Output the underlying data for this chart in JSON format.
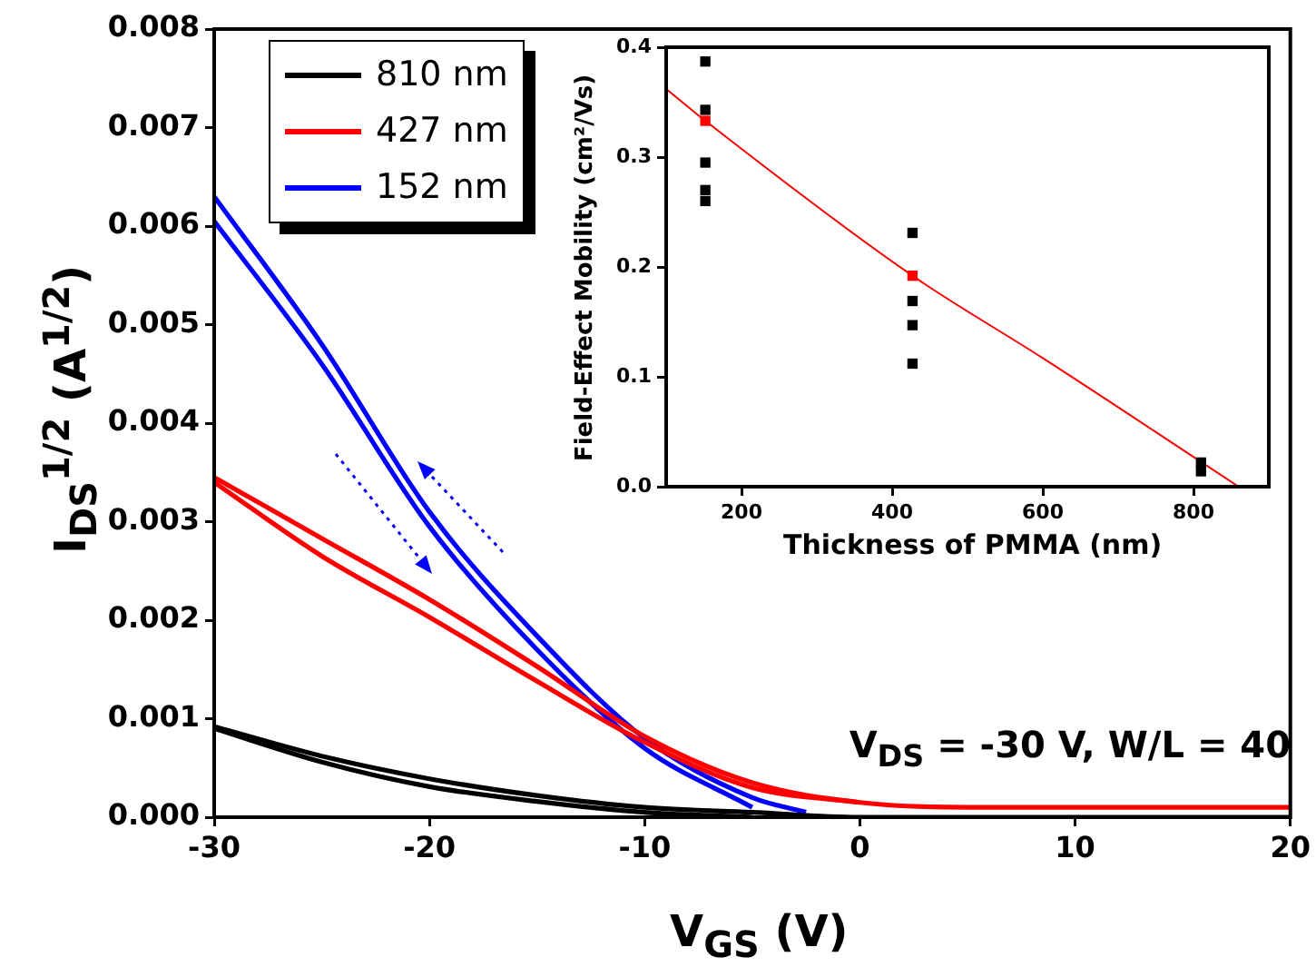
{
  "chart_data": [
    {
      "type": "line",
      "xlabel": "V$_{GS}$ (V)",
      "ylabel": "I$_{DS}$$^{1/2}$ (A$^{1/2}$)",
      "xlim": [
        -30,
        20
      ],
      "xticks": [
        -30,
        -20,
        -10,
        0,
        10,
        20
      ],
      "ylim": [
        0,
        0.008
      ],
      "yticks": [
        {
          "value": 0,
          "label": "0.000"
        },
        {
          "value": 0.001,
          "label": "0.001"
        },
        {
          "value": 0.002,
          "label": "0.002"
        },
        {
          "value": 0.003,
          "label": "0.003"
        },
        {
          "value": 0.004,
          "label": "0.004"
        },
        {
          "value": 0.005,
          "label": "0.005"
        },
        {
          "value": 0.006,
          "label": "0.006"
        },
        {
          "value": 0.007,
          "label": "0.007"
        },
        {
          "value": 0.008,
          "label": "0.008"
        }
      ],
      "grid": false,
      "legend": "top left",
      "annotations": [
        "V$_{DS}$ = -30 V, W/L = 40"
      ],
      "x": [
        -30,
        -25,
        -20,
        -15,
        -10,
        -5,
        0,
        5,
        10,
        15,
        20
      ],
      "series": [
        {
          "name": "810 nm",
          "color": "#000000",
          "values": [
            0.00092,
            0.00062,
            0.00039,
            0.00022,
            0.0001,
            5e-05,
            0,
            0,
            0,
            0,
            0
          ]
        },
        {
          "color": "#000000",
          "x": [
            -30,
            -25,
            -20,
            -15,
            -10,
            -5
          ],
          "values": [
            0.0009,
            0.00056,
            0.00031,
            0.00016,
            5e-05,
            0
          ]
        },
        {
          "name": "427 nm",
          "color": "#ff0000",
          "values": [
            0.00345,
            0.00283,
            0.00221,
            0.00153,
            0.00082,
            0.00035,
            0.00015,
            0.0001,
            0.0001,
            0.0001,
            0.0001
          ]
        },
        {
          "color": "#ff0000",
          "x": [
            -30,
            -25,
            -20,
            -15,
            -10,
            -5,
            0
          ],
          "values": [
            0.0034,
            0.00265,
            0.00203,
            0.00138,
            0.00076,
            0.0003,
            0.00015
          ]
        },
        {
          "name": "152 nm",
          "color": "#0000ff",
          "x": [
            -30,
            -25,
            -20,
            -15,
            -10,
            -5,
            -2.5
          ],
          "values": [
            0.0063,
            0.0048,
            0.0031,
            0.00184,
            0.0008,
            0.0002,
            5e-05
          ]
        },
        {
          "color": "#0000ff",
          "x": [
            -30,
            -25,
            -20,
            -15,
            -10,
            -5
          ],
          "values": [
            0.00605,
            0.0046,
            0.00295,
            0.0017,
            0.0007,
            0.0001
          ]
        }
      ]
    },
    {
      "type": "scatter",
      "xlabel": "Thickness of PMMA (nm)",
      "ylabel": "Field-Effect Mobility (cm²/Vs)",
      "xlim": [
        100,
        900
      ],
      "xticks": [
        200,
        400,
        600,
        800
      ],
      "ylim": [
        0,
        0.4
      ],
      "yticks": [
        {
          "value": 0,
          "label": "0.0"
        },
        {
          "value": 0.1,
          "label": "0.1"
        },
        {
          "value": 0.2,
          "label": "0.2"
        },
        {
          "value": 0.3,
          "label": "0.3"
        },
        {
          "value": 0.4,
          "label": "0.4"
        }
      ],
      "grid": false,
      "marker": "square",
      "series": [
        {
          "color": "#000000",
          "x": [
            152,
            152,
            152,
            152,
            152,
            427,
            427,
            427,
            427,
            810,
            810
          ],
          "values": [
            0.387,
            0.343,
            0.295,
            0.27,
            0.26,
            0.231,
            0.169,
            0.147,
            0.112,
            0.022,
            0.014
          ]
        },
        {
          "color": "#ff0000",
          "x": [
            152,
            427
          ],
          "values": [
            0.333,
            0.192
          ]
        },
        {
          "type": "line",
          "marker": "none",
          "color": "#ff0000",
          "x": [
            100,
            152,
            427,
            600,
            860
          ],
          "values": [
            0.362,
            0.333,
            0.192,
            0.117,
            0
          ]
        }
      ]
    }
  ]
}
